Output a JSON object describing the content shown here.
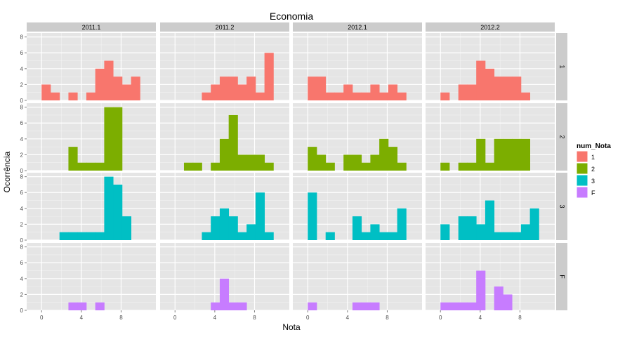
{
  "chart_data": {
    "type": "bar",
    "title": "Economia",
    "xlabel": "Nota",
    "ylabel": "Ocorrência",
    "xlim": [
      -1.5,
      11.5
    ],
    "ylim": [
      0,
      8.5
    ],
    "x_ticks": [
      0,
      4,
      8
    ],
    "y_ticks": [
      0,
      2,
      4,
      6,
      8
    ],
    "bin_width": 0.9,
    "grid": true,
    "legend_position": "right",
    "legend_title": "num_Nota",
    "columns": [
      "2011.1",
      "2011.2",
      "2012.1",
      "2012.2"
    ],
    "rows": [
      "1",
      "2",
      "3",
      "F"
    ],
    "series": [
      {
        "name": "1",
        "color": "#F8766D"
      },
      {
        "name": "2",
        "color": "#7CAE00"
      },
      {
        "name": "3",
        "color": "#00BFC4"
      },
      {
        "name": "F",
        "color": "#C77CFF"
      }
    ],
    "bin_starts": [
      0,
      0.9,
      1.8,
      2.7,
      3.6,
      4.5,
      5.4,
      6.3,
      7.2,
      8.1,
      9.0,
      9.9
    ],
    "counts": {
      "1": {
        "2011.1": [
          2,
          1,
          0,
          1,
          0,
          1,
          4,
          5,
          3,
          2,
          3,
          0
        ],
        "2011.2": [
          0,
          0,
          0,
          1,
          2,
          3,
          3,
          2,
          3,
          1,
          6,
          0
        ],
        "2012.1": [
          3,
          3,
          1,
          1,
          2,
          1,
          1,
          2,
          1,
          2,
          1,
          0
        ],
        "2012.2": [
          1,
          0,
          2,
          2,
          5,
          4,
          3,
          3,
          3,
          1,
          0,
          0
        ]
      },
      "2": {
        "2011.1": [
          0,
          0,
          0,
          3,
          1,
          1,
          1,
          8,
          8,
          0,
          0,
          0
        ],
        "2011.2": [
          0,
          1,
          1,
          0,
          1,
          4,
          7,
          2,
          2,
          2,
          1,
          0
        ],
        "2012.1": [
          3,
          2,
          1,
          0,
          2,
          2,
          1,
          2,
          4,
          3,
          1,
          0
        ],
        "2012.2": [
          1,
          0,
          1,
          1,
          4,
          1,
          4,
          4,
          4,
          4,
          0,
          0
        ]
      },
      "3": {
        "2011.1": [
          0,
          0,
          1,
          1,
          1,
          1,
          1,
          8,
          7,
          3,
          0,
          0
        ],
        "2011.2": [
          0,
          0,
          0,
          1,
          3,
          4,
          3,
          1,
          2,
          6,
          1,
          0
        ],
        "2012.1": [
          6,
          0,
          1,
          0,
          0,
          3,
          1,
          2,
          1,
          1,
          4,
          0
        ],
        "2012.2": [
          2,
          0,
          3,
          3,
          2,
          5,
          1,
          1,
          1,
          2,
          4,
          0
        ]
      },
      "F": {
        "2011.1": [
          0,
          0,
          0,
          1,
          1,
          0,
          1,
          0,
          0,
          0,
          0,
          0
        ],
        "2011.2": [
          0,
          0,
          0,
          0,
          1,
          4,
          1,
          1,
          0,
          0,
          0,
          0
        ],
        "2012.1": [
          1,
          0,
          0,
          0,
          0,
          1,
          1,
          1,
          0,
          0,
          0,
          0
        ],
        "2012.2": [
          1,
          1,
          1,
          1,
          5,
          0,
          3,
          2,
          0,
          0,
          0,
          0
        ]
      }
    }
  }
}
